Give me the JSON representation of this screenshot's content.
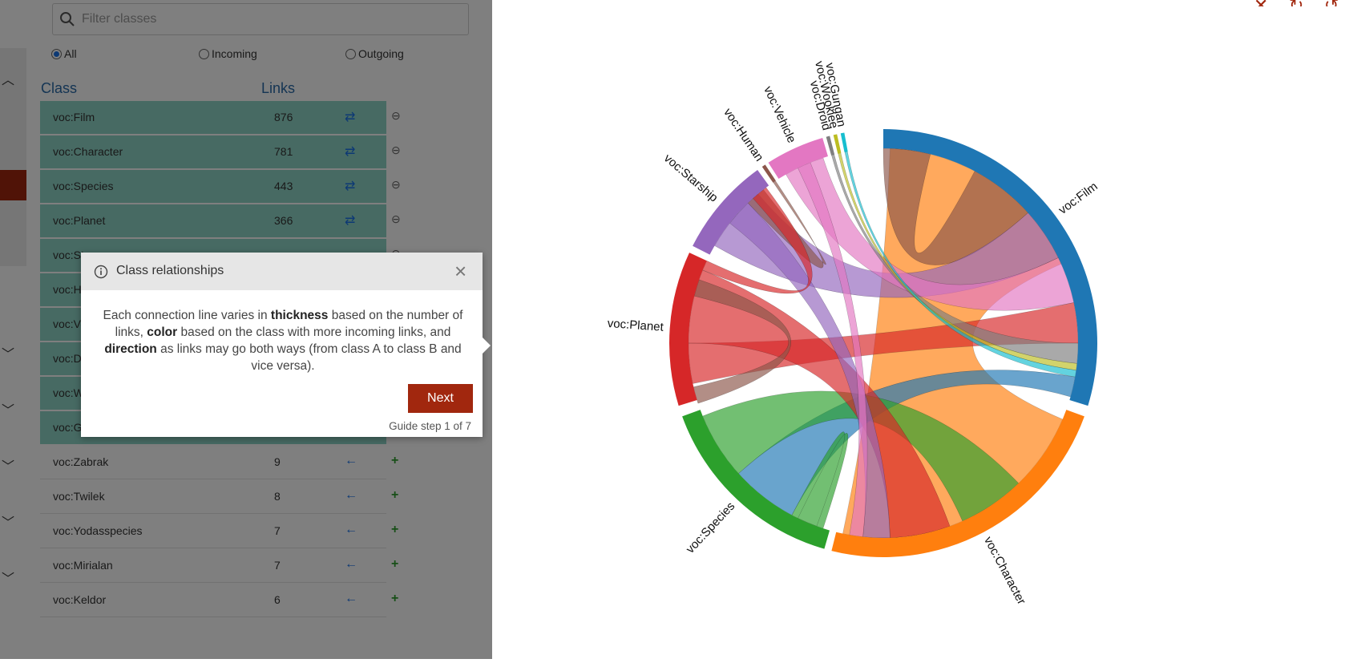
{
  "filter": {
    "placeholder": "Filter classes"
  },
  "radios": {
    "all": "All",
    "incoming": "Incoming",
    "outgoing": "Outgoing"
  },
  "table": {
    "col_class": "Class",
    "col_links": "Links",
    "rows": [
      {
        "name": "voc:Film",
        "count": "876",
        "dir": "⇄",
        "action": "⊖",
        "selected": true
      },
      {
        "name": "voc:Character",
        "count": "781",
        "dir": "⇄",
        "action": "⊖",
        "selected": true
      },
      {
        "name": "voc:Species",
        "count": "443",
        "dir": "⇄",
        "action": "⊖",
        "selected": true
      },
      {
        "name": "voc:Planet",
        "count": "366",
        "dir": "⇄",
        "action": "⊖",
        "selected": true
      },
      {
        "name": "voc:St",
        "count": "",
        "dir": "",
        "action": "⊖",
        "selected": true
      },
      {
        "name": "voc:Hu",
        "count": "",
        "dir": "",
        "action": "",
        "selected": true
      },
      {
        "name": "voc:Ve",
        "count": "",
        "dir": "",
        "action": "",
        "selected": true
      },
      {
        "name": "voc:Dr",
        "count": "",
        "dir": "",
        "action": "",
        "selected": true
      },
      {
        "name": "voc:W",
        "count": "",
        "dir": "",
        "action": "",
        "selected": true
      },
      {
        "name": "voc:Gu",
        "count": "",
        "dir": "",
        "action": "",
        "selected": true
      },
      {
        "name": "voc:Zabrak",
        "count": "9",
        "dir": "←",
        "action": "+",
        "selected": false
      },
      {
        "name": "voc:Twilek",
        "count": "8",
        "dir": "←",
        "action": "+",
        "selected": false
      },
      {
        "name": "voc:Yodasspecies",
        "count": "7",
        "dir": "←",
        "action": "+",
        "selected": false
      },
      {
        "name": "voc:Mirialan",
        "count": "7",
        "dir": "←",
        "action": "+",
        "selected": false
      },
      {
        "name": "voc:Keldor",
        "count": "6",
        "dir": "←",
        "action": "+",
        "selected": false
      }
    ]
  },
  "tooltip": {
    "title": "Class relationships",
    "close": "×",
    "text_1": "Each connection line varies in ",
    "bold_1": "thickness",
    "text_2": " based on the number of links, ",
    "bold_2": "color",
    "text_3": " based on the class with more incoming links, and ",
    "bold_3": "direction",
    "text_4": " as links may go both ways (from class A to class B and vice versa).",
    "next": "Next",
    "step": "Guide step 1 of 7"
  },
  "chord": {
    "groups": [
      {
        "name": "voc:Film",
        "color": "#1f77b4",
        "start": 0.0,
        "end": 107.0
      },
      {
        "name": "voc:Character",
        "color": "#ff7f0e",
        "start": 110.0,
        "end": 194.0
      },
      {
        "name": "voc:Species",
        "color": "#2ca02c",
        "start": 196.0,
        "end": 250.0
      },
      {
        "name": "voc:Planet",
        "color": "#d62728",
        "start": 253.0,
        "end": 295.0
      },
      {
        "name": "voc:Starship",
        "color": "#9467bd",
        "start": 297.0,
        "end": 324.0
      },
      {
        "name": "voc:Human",
        "color": "#8c564b",
        "start": 325.5,
        "end": 326.5
      },
      {
        "name": "voc:Vehicle",
        "color": "#e377c2",
        "start": 327.5,
        "end": 343.5
      },
      {
        "name": "voc:Droid",
        "color": "#7f7f7f",
        "start": 344.5,
        "end": 345.5
      },
      {
        "name": "voc:Wookiee",
        "color": "#bcbd22",
        "start": 346.5,
        "end": 347.5
      },
      {
        "name": "voc:Gungan",
        "color": "#17becf",
        "start": 348.5,
        "end": 349.5
      }
    ],
    "ribbons": [
      {
        "color": "#ff7f0e",
        "a": [
          2,
          66
        ],
        "b": [
          113,
          192
        ]
      },
      {
        "color": "#8c564b",
        "a": [
          28,
          48
        ],
        "b": [
          0,
          14
        ]
      },
      {
        "color": "#9467bd",
        "a": [
          48,
          64
        ],
        "b": [
          300,
          320
        ]
      },
      {
        "color": "#e377c2",
        "a": [
          64,
          78
        ],
        "b": [
          330,
          342
        ]
      },
      {
        "color": "#d62728",
        "a": [
          78,
          90
        ],
        "b": [
          258,
          270
        ]
      },
      {
        "color": "#7f7f7f",
        "a": [
          90,
          96
        ],
        "b": [
          344.6,
          345.4
        ]
      },
      {
        "color": "#bcbd22",
        "a": [
          96,
          98
        ],
        "b": [
          346.6,
          347.4
        ]
      },
      {
        "color": "#17becf",
        "a": [
          98,
          100
        ],
        "b": [
          348.6,
          349.4
        ]
      },
      {
        "color": "#1f77b4",
        "a": [
          100,
          106
        ],
        "b": [
          208,
          228
        ]
      },
      {
        "color": "#2ca02c",
        "a": [
          136,
          156
        ],
        "b": [
          228,
          248
        ]
      },
      {
        "color": "#d62728",
        "a": [
          160,
          178
        ],
        "b": [
          270,
          292
        ]
      },
      {
        "color": "#9467bd",
        "a": [
          178,
          186
        ],
        "b": [
          308,
          316
        ]
      },
      {
        "color": "#e377c2",
        "a": [
          186,
          190
        ],
        "b": [
          334,
          338
        ]
      },
      {
        "color": "#2ca02c",
        "a": [
          198,
          208
        ],
        "b": [
          200,
          206
        ]
      },
      {
        "color": "#8c564b",
        "a": [
          252,
          257
        ],
        "b": [
          284,
          289
        ]
      },
      {
        "color": "#8c564b",
        "a": [
          316,
          322
        ],
        "b": [
          325.6,
          326.4
        ]
      },
      {
        "color": "#d62728",
        "a": [
          292,
          295
        ],
        "b": [
          318,
          323
        ]
      }
    ]
  }
}
